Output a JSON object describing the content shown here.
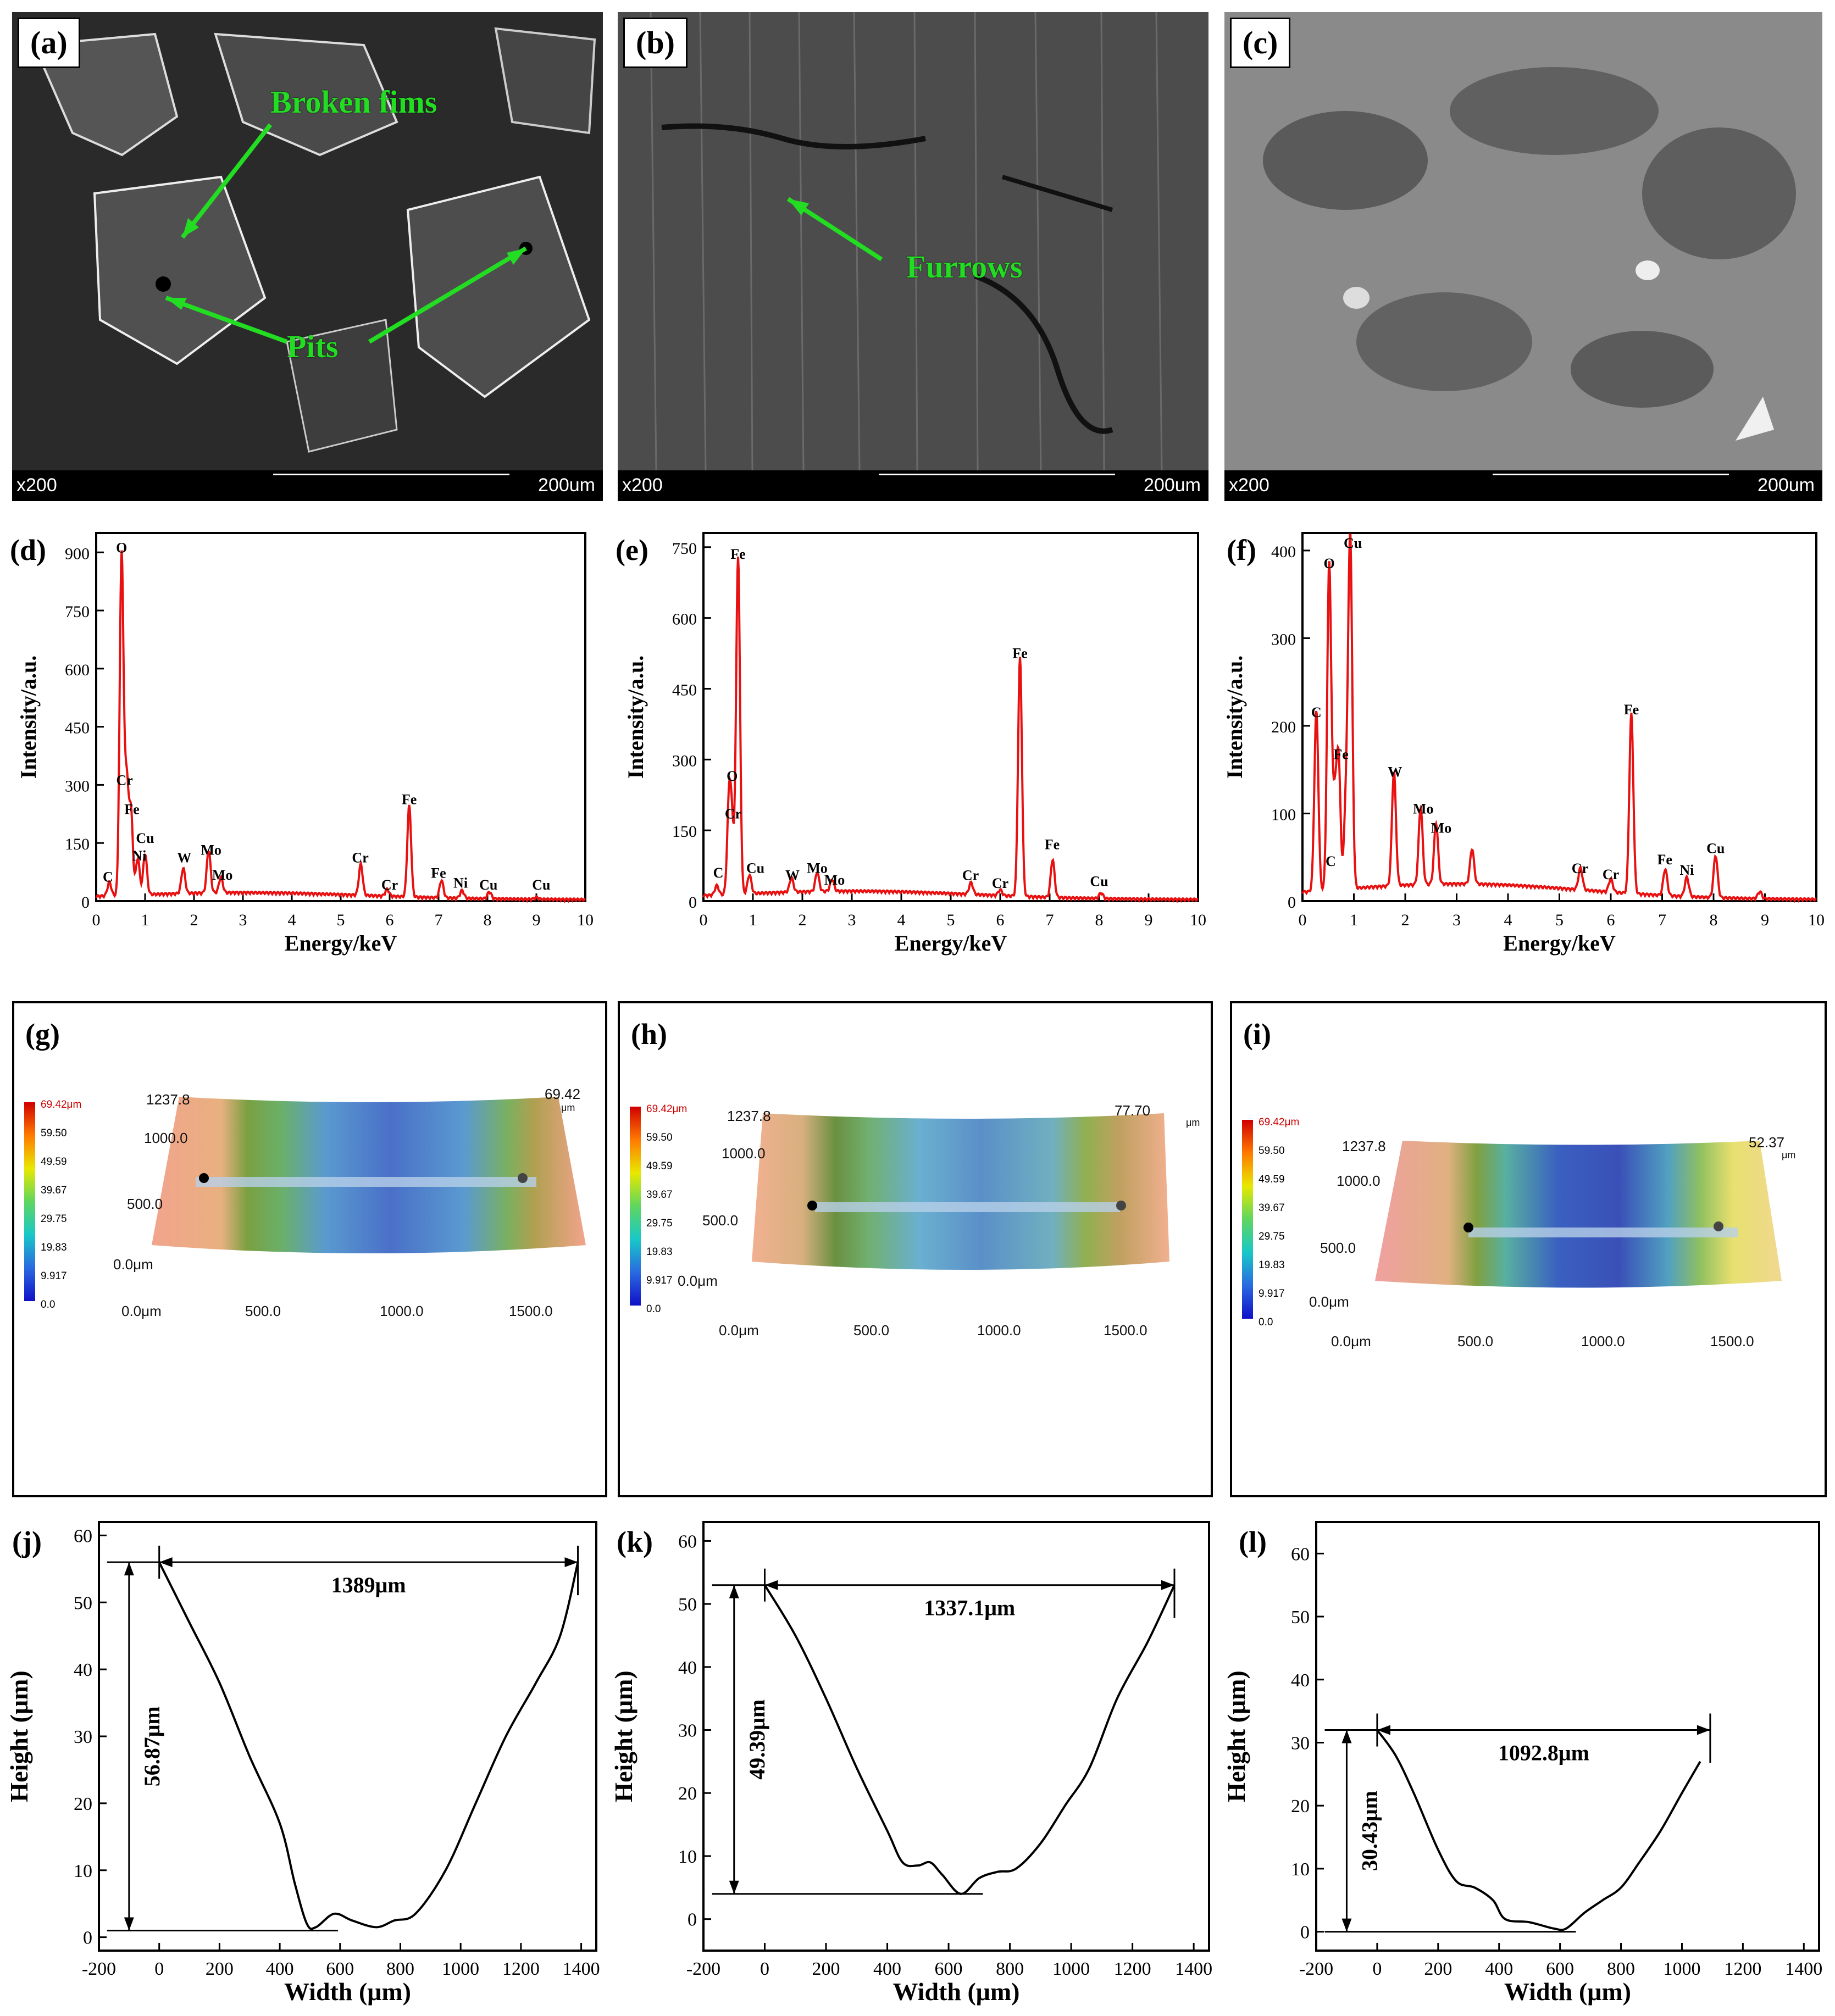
{
  "sem_panels": [
    {
      "label": "(a)",
      "mag": "x200",
      "scale": "200um",
      "annotations": [
        {
          "text": "Broken fims"
        },
        {
          "text": "Pits"
        }
      ]
    },
    {
      "label": "(b)",
      "mag": "x200",
      "scale": "200um",
      "annotations": [
        {
          "text": "Furrows"
        }
      ]
    },
    {
      "label": "(c)",
      "mag": "x200",
      "scale": "200um",
      "annotations": []
    }
  ],
  "chart_data": [
    {
      "id": "d",
      "type": "line",
      "title": "(d)",
      "xlabel": "Energy/keV",
      "ylabel": "Intensity/a.u.",
      "xlim": [
        0,
        10
      ],
      "ylim": [
        0,
        950
      ],
      "xticks": [
        0,
        1,
        2,
        3,
        4,
        5,
        6,
        7,
        8,
        9,
        10
      ],
      "yticks": [
        0,
        150,
        300,
        450,
        600,
        750,
        900
      ],
      "line_color": "#e81010",
      "peaks": [
        [
          0.27,
          35
        ],
        [
          0.52,
          880
        ],
        [
          0.62,
          290
        ],
        [
          0.71,
          215
        ],
        [
          0.85,
          95
        ],
        [
          1.0,
          105
        ],
        [
          1.78,
          65
        ],
        [
          2.3,
          110
        ],
        [
          2.55,
          40
        ],
        [
          5.41,
          80
        ],
        [
          5.95,
          18
        ],
        [
          6.4,
          235
        ],
        [
          7.06,
          45
        ],
        [
          7.48,
          20
        ],
        [
          8.04,
          18
        ],
        [
          9.0,
          5
        ]
      ],
      "peak_labels": [
        {
          "text": "C",
          "x": 0.24,
          "y": 50
        },
        {
          "text": "O",
          "x": 0.52,
          "y": 900
        },
        {
          "text": "Cr",
          "x": 0.58,
          "y": 300
        },
        {
          "text": "Fe",
          "x": 0.73,
          "y": 225
        },
        {
          "text": "Ni",
          "x": 0.88,
          "y": 105
        },
        {
          "text": "Cu",
          "x": 1.0,
          "y": 150
        },
        {
          "text": "W",
          "x": 1.8,
          "y": 100
        },
        {
          "text": "Mo",
          "x": 2.35,
          "y": 120
        },
        {
          "text": "Mo",
          "x": 2.58,
          "y": 55
        },
        {
          "text": "Cr",
          "x": 5.4,
          "y": 100
        },
        {
          "text": "Cr",
          "x": 6.0,
          "y": 30
        },
        {
          "text": "Fe",
          "x": 6.4,
          "y": 250
        },
        {
          "text": "Fe",
          "x": 7.0,
          "y": 60
        },
        {
          "text": "Ni",
          "x": 7.45,
          "y": 35
        },
        {
          "text": "Cu",
          "x": 8.02,
          "y": 30
        },
        {
          "text": "Cu",
          "x": 9.1,
          "y": 30
        }
      ]
    },
    {
      "id": "e",
      "type": "line",
      "title": "(e)",
      "xlabel": "Energy/keV",
      "ylabel": "Intensity/a.u.",
      "xlim": [
        0,
        10
      ],
      "ylim": [
        0,
        780
      ],
      "xticks": [
        0,
        1,
        2,
        3,
        4,
        5,
        6,
        7,
        8,
        9,
        10
      ],
      "yticks": [
        0,
        150,
        300,
        450,
        600,
        750
      ],
      "line_color": "#e81010",
      "peaks": [
        [
          0.27,
          20
        ],
        [
          0.52,
          200
        ],
        [
          0.58,
          120
        ],
        [
          0.7,
          715
        ],
        [
          0.93,
          40
        ],
        [
          1.78,
          30
        ],
        [
          2.3,
          40
        ],
        [
          2.6,
          25
        ],
        [
          5.41,
          25
        ],
        [
          6.0,
          12
        ],
        [
          6.4,
          505
        ],
        [
          7.06,
          80
        ],
        [
          8.04,
          12
        ]
      ],
      "peak_labels": [
        {
          "text": "C",
          "x": 0.3,
          "y": 50
        },
        {
          "text": "O",
          "x": 0.58,
          "y": 255
        },
        {
          "text": "Cr",
          "x": 0.6,
          "y": 175
        },
        {
          "text": "Fe",
          "x": 0.7,
          "y": 725
        },
        {
          "text": "Cu",
          "x": 1.05,
          "y": 60
        },
        {
          "text": "W",
          "x": 1.8,
          "y": 45
        },
        {
          "text": "Mo",
          "x": 2.3,
          "y": 60
        },
        {
          "text": "Mo",
          "x": 2.65,
          "y": 35
        },
        {
          "text": "Cr",
          "x": 5.4,
          "y": 45
        },
        {
          "text": "Cr",
          "x": 6.0,
          "y": 28
        },
        {
          "text": "Fe",
          "x": 6.4,
          "y": 515
        },
        {
          "text": "Fe",
          "x": 7.05,
          "y": 110
        },
        {
          "text": "Cu",
          "x": 8.0,
          "y": 32
        }
      ]
    },
    {
      "id": "f",
      "type": "line",
      "title": "(f)",
      "xlabel": "Energy/keV",
      "ylabel": "Intensity/a.u.",
      "xlim": [
        0,
        10
      ],
      "ylim": [
        0,
        420
      ],
      "xticks": [
        0,
        1,
        2,
        3,
        4,
        5,
        6,
        7,
        8,
        9,
        10
      ],
      "yticks": [
        0,
        100,
        200,
        300,
        400
      ],
      "line_color": "#e81010",
      "peaks": [
        [
          0.27,
          205
        ],
        [
          0.52,
          372
        ],
        [
          0.62,
          95
        ],
        [
          0.7,
          150
        ],
        [
          0.85,
          100
        ],
        [
          0.93,
          395
        ],
        [
          1.78,
          130
        ],
        [
          2.3,
          88
        ],
        [
          2.6,
          70
        ],
        [
          3.3,
          40
        ],
        [
          5.41,
          25
        ],
        [
          6.0,
          15
        ],
        [
          6.4,
          205
        ],
        [
          7.06,
          30
        ],
        [
          7.48,
          22
        ],
        [
          8.04,
          48
        ],
        [
          8.9,
          8
        ]
      ],
      "peak_labels": [
        {
          "text": "C",
          "x": 0.27,
          "y": 210
        },
        {
          "text": "O",
          "x": 0.52,
          "y": 380
        },
        {
          "text": "C",
          "x": 0.55,
          "y": 40
        },
        {
          "text": "Fe",
          "x": 0.75,
          "y": 162
        },
        {
          "text": "Cu",
          "x": 0.98,
          "y": 403
        },
        {
          "text": "W",
          "x": 1.8,
          "y": 142
        },
        {
          "text": "Mo",
          "x": 2.35,
          "y": 100
        },
        {
          "text": "Mo",
          "x": 2.7,
          "y": 78
        },
        {
          "text": "Cr",
          "x": 5.4,
          "y": 32
        },
        {
          "text": "Cr",
          "x": 6.0,
          "y": 25
        },
        {
          "text": "Fe",
          "x": 6.4,
          "y": 213
        },
        {
          "text": "Fe",
          "x": 7.05,
          "y": 42
        },
        {
          "text": "Ni",
          "x": 7.48,
          "y": 30
        },
        {
          "text": "Cu",
          "x": 8.04,
          "y": 55
        }
      ]
    },
    {
      "id": "j",
      "type": "line",
      "title": "(j)",
      "xlabel": "Width (μm)",
      "ylabel": "Height (μm)",
      "xlim": [
        -200,
        1450
      ],
      "ylim": [
        -2,
        62
      ],
      "xticks": [
        -200,
        0,
        200,
        400,
        600,
        800,
        1000,
        1200,
        1400
      ],
      "yticks": [
        0,
        10,
        20,
        30,
        40,
        50,
        60
      ],
      "line_color": "#000000",
      "points": [
        [
          0,
          56
        ],
        [
          100,
          47
        ],
        [
          200,
          38
        ],
        [
          300,
          27
        ],
        [
          400,
          17
        ],
        [
          450,
          8
        ],
        [
          490,
          2
        ],
        [
          520,
          1.5
        ],
        [
          580,
          3.5
        ],
        [
          640,
          2.5
        ],
        [
          720,
          1.5
        ],
        [
          780,
          2.5
        ],
        [
          850,
          3.5
        ],
        [
          950,
          10
        ],
        [
          1050,
          20
        ],
        [
          1150,
          30
        ],
        [
          1250,
          38
        ],
        [
          1330,
          45
        ],
        [
          1389,
          56
        ]
      ],
      "width_annotation": "1389μm",
      "height_annotation": "56.87μm",
      "width_range": [
        0,
        1389
      ],
      "height_range": [
        1,
        56
      ]
    },
    {
      "id": "k",
      "type": "line",
      "title": "(k)",
      "xlabel": "Width (μm)",
      "ylabel": "Height (μm)",
      "xlim": [
        -200,
        1450
      ],
      "ylim": [
        -5,
        63
      ],
      "xticks": [
        -200,
        0,
        200,
        400,
        600,
        800,
        1000,
        1200,
        1400
      ],
      "yticks": [
        0,
        10,
        20,
        30,
        40,
        50,
        60
      ],
      "line_color": "#000000",
      "points": [
        [
          0,
          53
        ],
        [
          100,
          45
        ],
        [
          200,
          35
        ],
        [
          300,
          24
        ],
        [
          400,
          14
        ],
        [
          450,
          9
        ],
        [
          500,
          8.5
        ],
        [
          540,
          9
        ],
        [
          580,
          7
        ],
        [
          640,
          4
        ],
        [
          700,
          6.5
        ],
        [
          760,
          7.5
        ],
        [
          820,
          8
        ],
        [
          900,
          12
        ],
        [
          980,
          18
        ],
        [
          1060,
          24
        ],
        [
          1150,
          35
        ],
        [
          1250,
          44
        ],
        [
          1337,
          53
        ]
      ],
      "width_annotation": "1337.1μm",
      "height_annotation": "49.39μm",
      "width_range": [
        0,
        1337
      ],
      "height_range": [
        4,
        53
      ]
    },
    {
      "id": "l",
      "type": "line",
      "title": "(l)",
      "xlabel": "Width (μm)",
      "ylabel": "Height (μm)",
      "xlim": [
        -200,
        1450
      ],
      "ylim": [
        -3,
        65
      ],
      "xticks": [
        -200,
        0,
        200,
        400,
        600,
        800,
        1000,
        1200,
        1400
      ],
      "yticks": [
        0,
        10,
        20,
        30,
        40,
        50,
        60
      ],
      "line_color": "#000000",
      "points": [
        [
          0,
          32
        ],
        [
          60,
          28
        ],
        [
          120,
          22
        ],
        [
          200,
          13
        ],
        [
          260,
          8
        ],
        [
          320,
          7
        ],
        [
          380,
          5
        ],
        [
          420,
          2
        ],
        [
          500,
          1.5
        ],
        [
          580,
          0.5
        ],
        [
          620,
          0.5
        ],
        [
          680,
          3
        ],
        [
          740,
          5
        ],
        [
          800,
          7
        ],
        [
          860,
          11
        ],
        [
          930,
          16
        ],
        [
          1000,
          22
        ],
        [
          1060,
          27
        ]
      ],
      "width_annotation": "1092.8μm",
      "height_annotation": "30.43μm",
      "width_range": [
        0,
        1092.8
      ],
      "height_range": [
        0,
        32
      ]
    }
  ],
  "surface_panels": [
    {
      "label": "(g)",
      "peak_value": "69.42",
      "peak_unit": "μm",
      "y_top": "1237.8",
      "y1": "1000.0",
      "y2": "500.0",
      "origin": "0.0μm",
      "x0": "0.0μm",
      "x1": "500.0",
      "x2": "1000.0",
      "x3": "1500.0"
    },
    {
      "label": "(h)",
      "peak_value": "77.70",
      "peak_unit": "μm",
      "y_top": "1237.8",
      "y1": "1000.0",
      "y2": "500.0",
      "origin": "0.0μm",
      "x0": "0.0μm",
      "x1": "500.0",
      "x2": "1000.0",
      "x3": "1500.0"
    },
    {
      "label": "(i)",
      "peak_value": "52.37",
      "peak_unit": "μm",
      "y_top": "1237.8",
      "y1": "1000.0",
      "y2": "500.0",
      "origin": "0.0μm",
      "x0": "0.0μm",
      "x1": "500.0",
      "x2": "1000.0",
      "x3": "1500.0"
    }
  ],
  "colorbar": {
    "labels": [
      "69.42μm",
      "59.50",
      "49.59",
      "39.67",
      "29.75",
      "19.83",
      "9.917",
      "0.0"
    ]
  },
  "colors": {
    "annotation": "#22dd22",
    "spectrum": "#e81010"
  }
}
